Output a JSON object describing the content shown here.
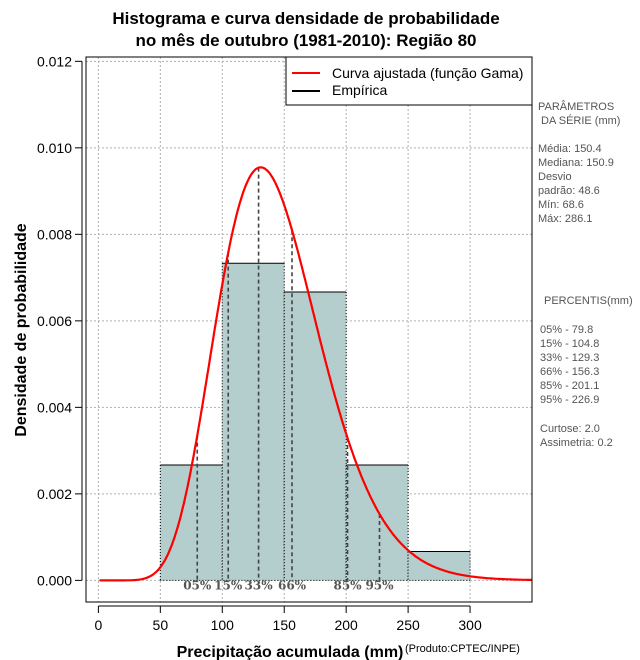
{
  "chart_data": {
    "type": "bar",
    "title_line1": "Histograma e curva densidade de probabilidade",
    "title_line2": "no mês de outubro (1981-2010): Região 80",
    "xlabel": "Precipitação acumulada (mm)",
    "ylabel": "Densidade de probabilidade",
    "credit": "(Produto:CPTEC/INPE)",
    "xlim": [
      -10,
      350
    ],
    "ylim": [
      -0.0005,
      0.0121
    ],
    "x_ticks": [
      0,
      50,
      100,
      150,
      200,
      250,
      300
    ],
    "y_ticks": [
      0.0,
      0.002,
      0.004,
      0.006,
      0.008,
      0.01,
      0.012
    ],
    "y_tick_labels": [
      "0.000",
      "0.002",
      "0.004",
      "0.006",
      "0.008",
      "0.010",
      "0.012"
    ],
    "bins": [
      {
        "x0": 50,
        "x1": 100,
        "density": 0.002667
      },
      {
        "x0": 100,
        "x1": 150,
        "density": 0.007333
      },
      {
        "x0": 150,
        "x1": 200,
        "density": 0.006667
      },
      {
        "x0": 200,
        "x1": 250,
        "density": 0.002667
      },
      {
        "x0": 250,
        "x1": 300,
        "density": 0.000667
      }
    ],
    "gamma_fit": {
      "shape": 11.0,
      "scale": 13.1
    },
    "percentile_lines": [
      {
        "label": "05%",
        "value": 79.8
      },
      {
        "label": "15%",
        "value": 104.8
      },
      {
        "label": "33%",
        "value": 129.3
      },
      {
        "label": "66%",
        "value": 156.3
      },
      {
        "label": "85%",
        "value": 201.1
      },
      {
        "label": "95%",
        "value": 226.9
      }
    ],
    "legend": [
      {
        "name": "Curva ajustada (função Gama)",
        "color": "#ff0000"
      },
      {
        "name": "Empírica",
        "color": "#000000"
      }
    ],
    "colors": {
      "bar_fill": "#b4cecd",
      "curve": "#ff0000",
      "grid": "#b0b0b0"
    }
  },
  "side_panel": {
    "params_title_1": "PARÂMETROS",
    "params_title_2": "DA SÉRIE (mm)",
    "mean": "Média:  150.4",
    "median": "Mediana:  150.9",
    "sd_1": "Desvio",
    "sd_2": "padrão:  48.6",
    "min": "Mín:  68.6",
    "max": "Máx:  286.1",
    "percentis_title": "PERCENTIS(mm)",
    "percentis": [
      "05% -  79.8",
      "15% -  104.8",
      "33% -  129.3",
      "66% -  156.3",
      "85% -  201.1",
      "95% -  226.9"
    ],
    "kurtosis": "Curtose:  2.0",
    "skewness": "Assimetria:  0.2"
  }
}
